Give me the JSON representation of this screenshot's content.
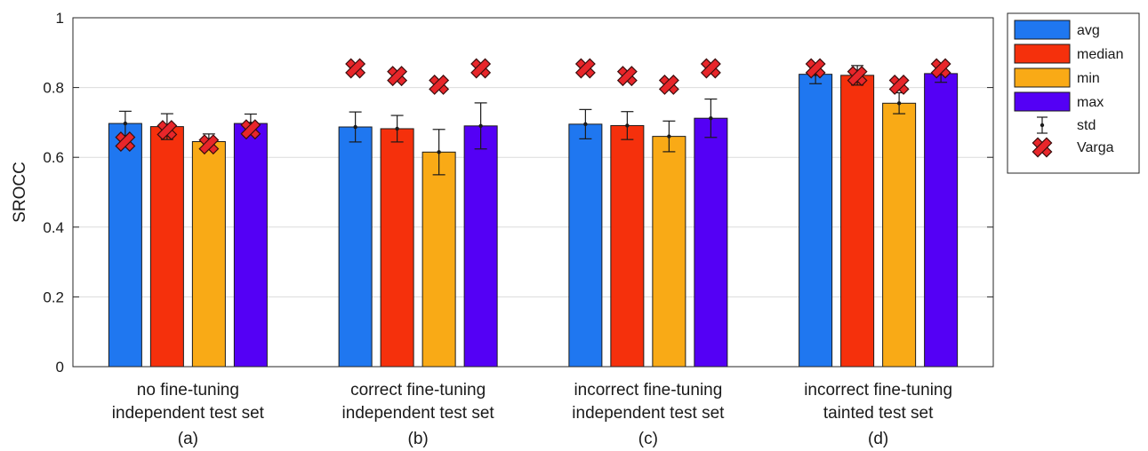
{
  "chart_data": {
    "type": "bar",
    "ylabel": "SROCC",
    "ylim": [
      0,
      1
    ],
    "yticks": [
      0,
      0.2,
      0.4,
      0.6,
      0.8,
      1
    ],
    "ytick_labels": [
      "0",
      "0.2",
      "0.4",
      "0.6",
      "0.8",
      "1"
    ],
    "grid": "horizontal",
    "legend_position": "outside-top-right",
    "categories": [
      {
        "line1": "no fine-tuning",
        "line2": "independent test set",
        "tag": "(a)"
      },
      {
        "line1": "correct fine-tuning",
        "line2": "independent test set",
        "tag": "(b)"
      },
      {
        "line1": "incorrect fine-tuning",
        "line2": "independent test set",
        "tag": "(c)"
      },
      {
        "line1": "incorrect fine-tuning",
        "line2": "tainted test set",
        "tag": "(d)"
      }
    ],
    "series": [
      {
        "name": "avg",
        "color": "#1f77f0",
        "values": [
          0.697,
          0.687,
          0.695,
          0.838
        ],
        "std": [
          0.035,
          0.043,
          0.042,
          0.027
        ]
      },
      {
        "name": "median",
        "color": "#f5300c",
        "values": [
          0.688,
          0.682,
          0.691,
          0.835
        ],
        "std": [
          0.037,
          0.038,
          0.04,
          0.028
        ]
      },
      {
        "name": "min",
        "color": "#f9aa16",
        "values": [
          0.645,
          0.615,
          0.66,
          0.755
        ],
        "std": [
          0.022,
          0.065,
          0.044,
          0.03
        ]
      },
      {
        "name": "max",
        "color": "#5400f5",
        "values": [
          0.697,
          0.69,
          0.712,
          0.84
        ],
        "std": [
          0.027,
          0.066,
          0.055,
          0.025
        ]
      }
    ],
    "error_legend_label": "std",
    "marker_series": {
      "name": "Varga",
      "color": "#e8262a",
      "values": [
        [
          0.645,
          0.678,
          0.637,
          0.68
        ],
        [
          0.855,
          0.833,
          0.808,
          0.855
        ],
        [
          0.855,
          0.833,
          0.808,
          0.855
        ],
        [
          0.855,
          0.833,
          0.808,
          0.855
        ]
      ]
    }
  }
}
